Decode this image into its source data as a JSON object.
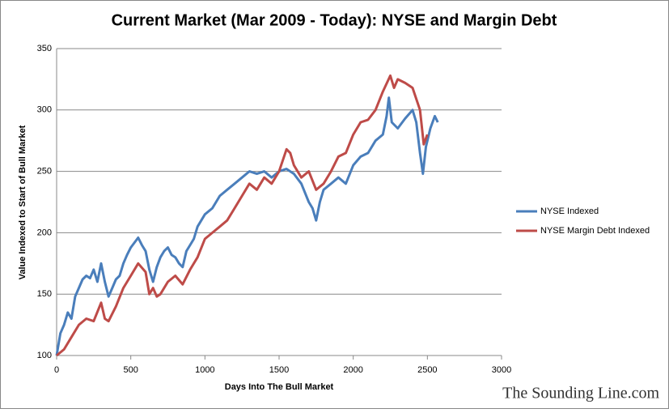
{
  "chart_data": {
    "type": "line",
    "title": "Current Market (Mar 2009 - Today): NYSE and Margin Debt",
    "xlabel": "Days Into The Bull Market",
    "ylabel": "Value Indexed to Start of Bull Market",
    "watermark": "The Sounding Line.com",
    "xlim": [
      0,
      3000
    ],
    "xticks": [
      0,
      500,
      1000,
      1500,
      2000,
      2500,
      3000
    ],
    "ylim": [
      100,
      350
    ],
    "yticks": [
      100,
      150,
      200,
      250,
      300,
      350
    ],
    "grid": true,
    "legend": "right",
    "series": [
      {
        "name": "NYSE Indexed",
        "color": "#4a7ebb",
        "x": [
          0,
          25,
          50,
          75,
          100,
          125,
          150,
          175,
          200,
          225,
          250,
          275,
          300,
          325,
          350,
          375,
          400,
          425,
          450,
          475,
          500,
          525,
          550,
          575,
          600,
          625,
          650,
          675,
          700,
          725,
          750,
          775,
          800,
          825,
          850,
          875,
          900,
          925,
          950,
          975,
          1000,
          1050,
          1100,
          1150,
          1200,
          1250,
          1300,
          1350,
          1400,
          1450,
          1500,
          1550,
          1600,
          1650,
          1700,
          1725,
          1750,
          1775,
          1800,
          1850,
          1900,
          1950,
          2000,
          2050,
          2100,
          2150,
          2200,
          2225,
          2240,
          2260,
          2300,
          2350,
          2400,
          2425,
          2450,
          2470,
          2490,
          2520,
          2550,
          2570
        ],
        "values": [
          100,
          118,
          125,
          135,
          130,
          148,
          155,
          162,
          165,
          163,
          170,
          160,
          175,
          160,
          148,
          155,
          162,
          165,
          175,
          182,
          188,
          192,
          196,
          190,
          185,
          170,
          160,
          172,
          180,
          185,
          188,
          182,
          180,
          175,
          172,
          185,
          190,
          195,
          205,
          210,
          215,
          220,
          230,
          235,
          240,
          245,
          250,
          248,
          250,
          245,
          250,
          252,
          248,
          240,
          225,
          220,
          210,
          225,
          235,
          240,
          245,
          240,
          255,
          262,
          265,
          275,
          280,
          295,
          310,
          290,
          285,
          293,
          300,
          290,
          265,
          248,
          270,
          285,
          295,
          290
        ]
      },
      {
        "name": "NYSE Margin Debt Indexed",
        "color": "#be4b48",
        "x": [
          0,
          50,
          100,
          150,
          200,
          250,
          300,
          325,
          350,
          400,
          450,
          500,
          550,
          600,
          625,
          650,
          675,
          700,
          750,
          800,
          850,
          900,
          950,
          1000,
          1050,
          1100,
          1150,
          1200,
          1250,
          1300,
          1350,
          1400,
          1450,
          1500,
          1550,
          1575,
          1600,
          1650,
          1700,
          1750,
          1800,
          1850,
          1900,
          1950,
          2000,
          2050,
          2100,
          2150,
          2200,
          2250,
          2275,
          2300,
          2350,
          2400,
          2450,
          2475,
          2500
        ],
        "values": [
          100,
          105,
          115,
          125,
          130,
          128,
          143,
          130,
          128,
          140,
          155,
          165,
          175,
          168,
          150,
          155,
          148,
          150,
          160,
          165,
          158,
          170,
          180,
          195,
          200,
          205,
          210,
          220,
          230,
          240,
          235,
          245,
          240,
          250,
          268,
          265,
          255,
          245,
          250,
          235,
          240,
          250,
          262,
          265,
          280,
          290,
          292,
          300,
          315,
          328,
          318,
          325,
          322,
          318,
          300,
          272,
          280
        ]
      }
    ]
  }
}
